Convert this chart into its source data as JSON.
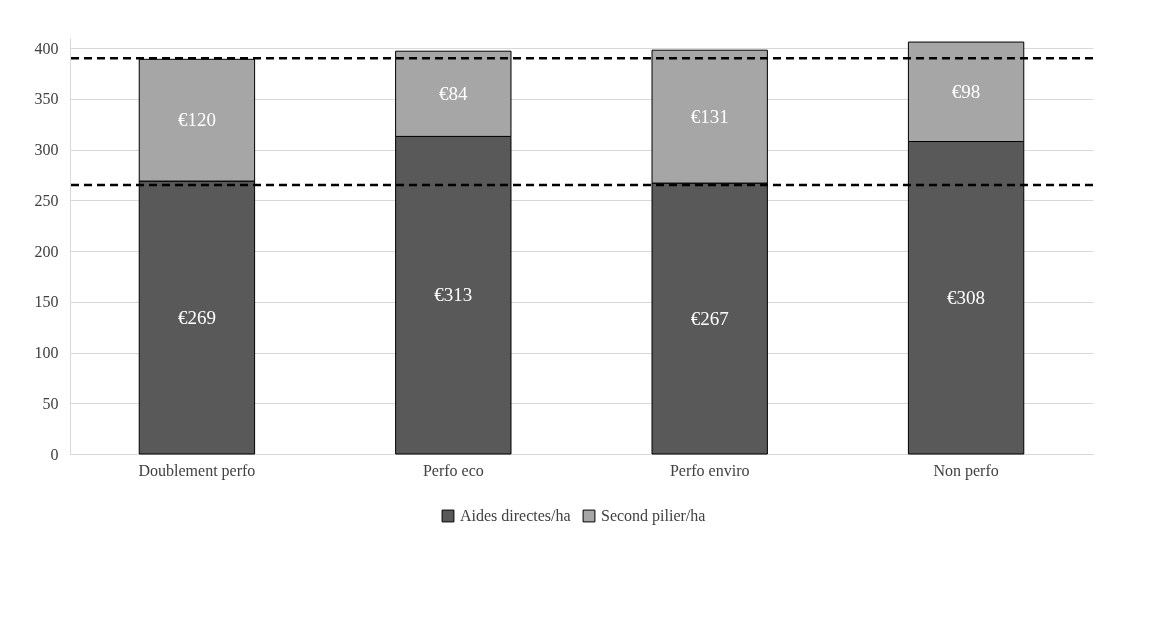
{
  "chart_data": {
    "type": "bar",
    "stacked": true,
    "categories": [
      "Doublement perfo",
      "Perfo eco",
      "Perfo enviro",
      "Non perfo"
    ],
    "series": [
      {
        "name": "Aides directes/ha",
        "color": "#595959",
        "values": [
          269,
          313,
          267,
          308
        ],
        "value_labels": [
          "€269",
          "€313",
          "€267",
          "€308"
        ]
      },
      {
        "name": "Second pilier/ha",
        "color": "#a6a6a6",
        "values": [
          120,
          84,
          131,
          98
        ],
        "value_labels": [
          "€120",
          "€84",
          "€131",
          "€98"
        ]
      }
    ],
    "ylim": [
      0,
      410
    ],
    "yticks": [
      0,
      50,
      100,
      150,
      200,
      250,
      300,
      350,
      400
    ],
    "grid": "y",
    "legend": "bottom",
    "ref_lines": [
      {
        "axis": "y",
        "value": 390,
        "color": "#000000",
        "line_style": "dashed"
      },
      {
        "axis": "y",
        "value": 265,
        "color": "#000000",
        "line_style": "dashed"
      }
    ]
  }
}
